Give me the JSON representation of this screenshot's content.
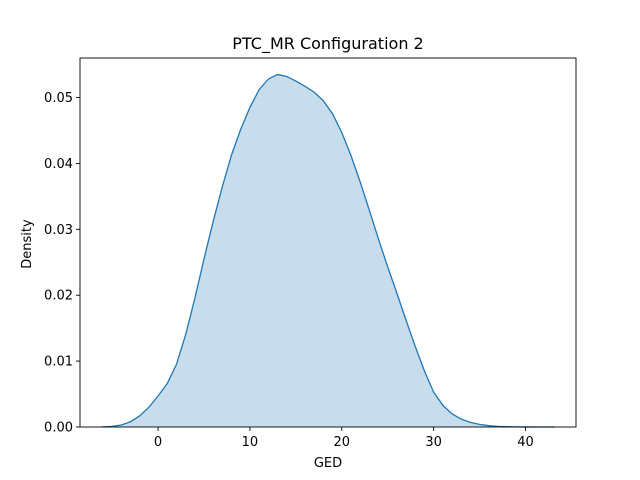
{
  "chart_data": {
    "type": "area",
    "title": "PTC_MR Configuration 2",
    "xlabel": "GED",
    "ylabel": "Density",
    "xlim": [
      -8.5,
      45.5
    ],
    "ylim": [
      0,
      0.056
    ],
    "xticks": [
      0,
      10,
      20,
      30,
      40
    ],
    "yticks": [
      0.0,
      0.01,
      0.02,
      0.03,
      0.04,
      0.05
    ],
    "ytick_labels": [
      "0.00",
      "0.01",
      "0.02",
      "0.03",
      "0.04",
      "0.05"
    ],
    "grid": false,
    "colors": {
      "line": "#1f77b4",
      "fill": "#1f77b4",
      "fill_alpha": 0.25
    },
    "series": [
      {
        "x": [
          -6.2,
          -5,
          -4,
          -3,
          -2,
          -1,
          0,
          1,
          2,
          3,
          4,
          5,
          6,
          7,
          8,
          9,
          10,
          11,
          12,
          13,
          14,
          15,
          16,
          17,
          18,
          19,
          20,
          21,
          22,
          23,
          24,
          25,
          26,
          27,
          28,
          29,
          30,
          31,
          32,
          33,
          34,
          35,
          36,
          37,
          38,
          39,
          40,
          41,
          42,
          43.2
        ],
        "y": [
          0,
          0.0001,
          0.0003,
          0.0008,
          0.0017,
          0.003,
          0.0047,
          0.0066,
          0.0095,
          0.014,
          0.0195,
          0.0255,
          0.0312,
          0.0365,
          0.0413,
          0.0452,
          0.0485,
          0.0512,
          0.0528,
          0.0535,
          0.0532,
          0.0525,
          0.0517,
          0.0508,
          0.0495,
          0.0475,
          0.0447,
          0.0412,
          0.0372,
          0.0329,
          0.0285,
          0.0243,
          0.0203,
          0.0162,
          0.0122,
          0.0085,
          0.0053,
          0.0033,
          0.002,
          0.0012,
          0.0007,
          0.0004,
          0.0002,
          0.0001,
          5e-05,
          2e-05,
          1e-05,
          0,
          0,
          0
        ]
      }
    ]
  }
}
